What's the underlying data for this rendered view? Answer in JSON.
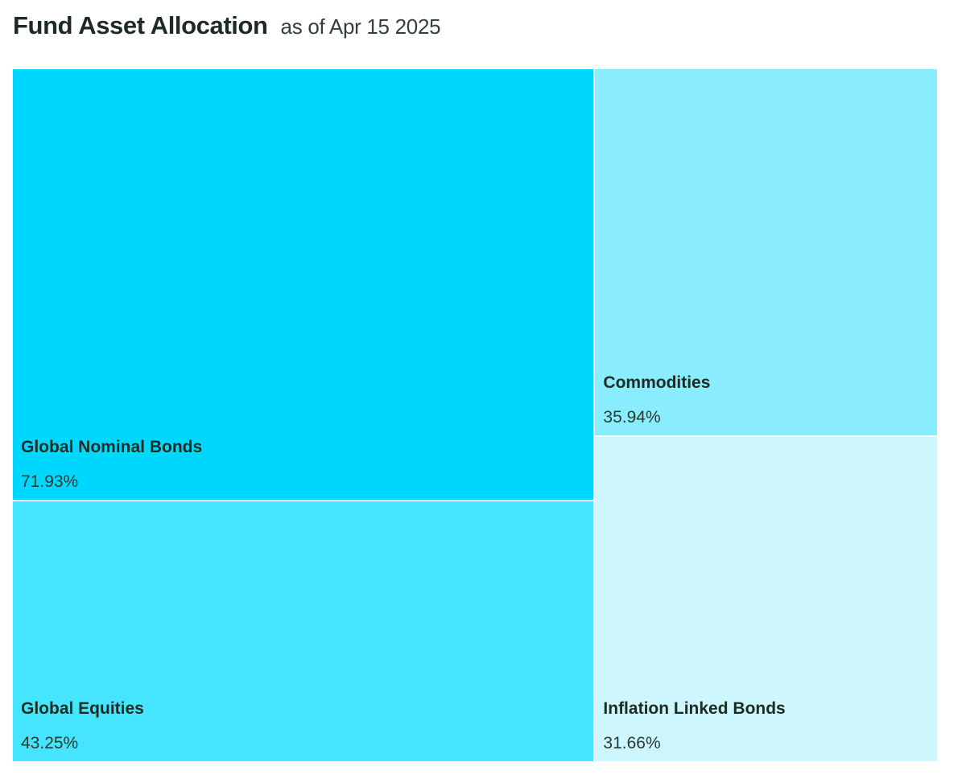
{
  "header": {
    "title": "Fund Asset Allocation",
    "subtitle": "as of Apr 15 2025"
  },
  "chart_data": {
    "type": "treemap",
    "title": "Fund Asset Allocation",
    "subtitle": "as of Apr 15 2025",
    "items": [
      {
        "name": "Global Nominal Bonds",
        "value": 71.93,
        "label": "71.93%",
        "color": "#00d7ff"
      },
      {
        "name": "Global Equities",
        "value": 43.25,
        "label": "43.25%",
        "color": "#45e4ff"
      },
      {
        "name": "Commodities",
        "value": 35.94,
        "label": "35.94%",
        "color": "#8aedff"
      },
      {
        "name": "Inflation Linked Bonds",
        "value": 31.66,
        "label": "31.66%",
        "color": "#cdf6ff"
      }
    ]
  }
}
